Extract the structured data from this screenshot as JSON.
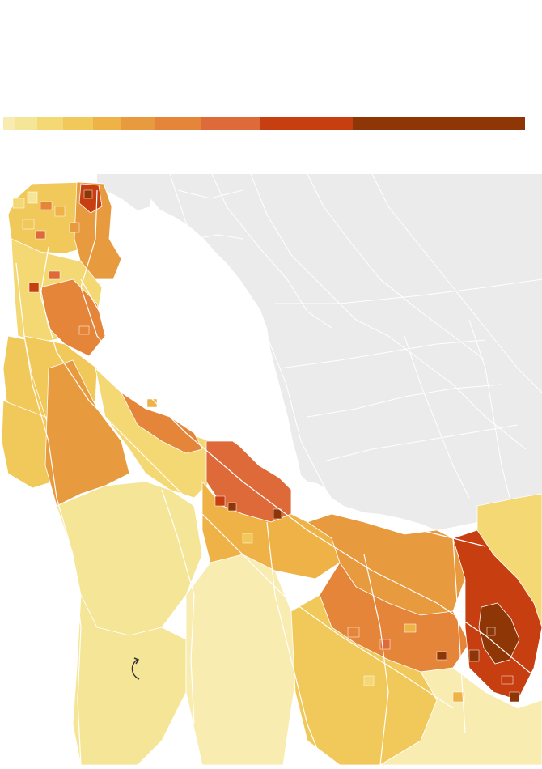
{
  "legend": {
    "swatches": [
      {
        "color": "#f8ecb0",
        "weight": 14
      },
      {
        "color": "#f5e596",
        "weight": 28
      },
      {
        "color": "#f3d874",
        "weight": 32
      },
      {
        "color": "#f1c85a",
        "weight": 37
      },
      {
        "color": "#eeb247",
        "weight": 35
      },
      {
        "color": "#e79a3e",
        "weight": 42
      },
      {
        "color": "#e4853a",
        "weight": 58
      },
      {
        "color": "#dd6a38",
        "weight": 72
      },
      {
        "color": "#c73e10",
        "weight": 116
      },
      {
        "color": "#8f3606",
        "weight": 214
      }
    ]
  },
  "map": {
    "water_color": "#ffffff",
    "land_color": "#ebebeb",
    "road_color": "#ffffff",
    "boundary_color": "#ffffff",
    "annotation_icon": "curved-arrow-icon",
    "regions": [
      {
        "id": "sf-north",
        "color": "#f1c85a"
      },
      {
        "id": "sf-east",
        "color": "#e79a3e"
      },
      {
        "id": "sf-downtown",
        "color": "#c73e10"
      },
      {
        "id": "daly-city",
        "color": "#f3d874"
      },
      {
        "id": "pacifica",
        "color": "#f1c85a"
      },
      {
        "id": "ssf",
        "color": "#e4853a"
      },
      {
        "id": "san-bruno",
        "color": "#f1c85a"
      },
      {
        "id": "ridge-west",
        "color": "#f1c85a"
      },
      {
        "id": "watershed",
        "color": "#e79a3e"
      },
      {
        "id": "san-mateo-belt",
        "color": "#f3d874"
      },
      {
        "id": "foster-city",
        "color": "#e4853a"
      },
      {
        "id": "redwood-city",
        "color": "#dd6a38"
      },
      {
        "id": "hills-central",
        "color": "#f5e596"
      },
      {
        "id": "coast-south",
        "color": "#f5e596"
      },
      {
        "id": "la-honda",
        "color": "#f8ecb0"
      },
      {
        "id": "menlo-pa",
        "color": "#eeb247"
      },
      {
        "id": "south-bay-north",
        "color": "#e79a3e"
      },
      {
        "id": "mountain-view",
        "color": "#e4853a"
      },
      {
        "id": "san-jose-east",
        "color": "#f3d874"
      },
      {
        "id": "cupertino",
        "color": "#f1c85a"
      },
      {
        "id": "los-gatos",
        "color": "#f8ecb0"
      },
      {
        "id": "sj-downtown",
        "color": "#c73e10"
      },
      {
        "id": "sj-core",
        "color": "#8f3606"
      }
    ]
  }
}
